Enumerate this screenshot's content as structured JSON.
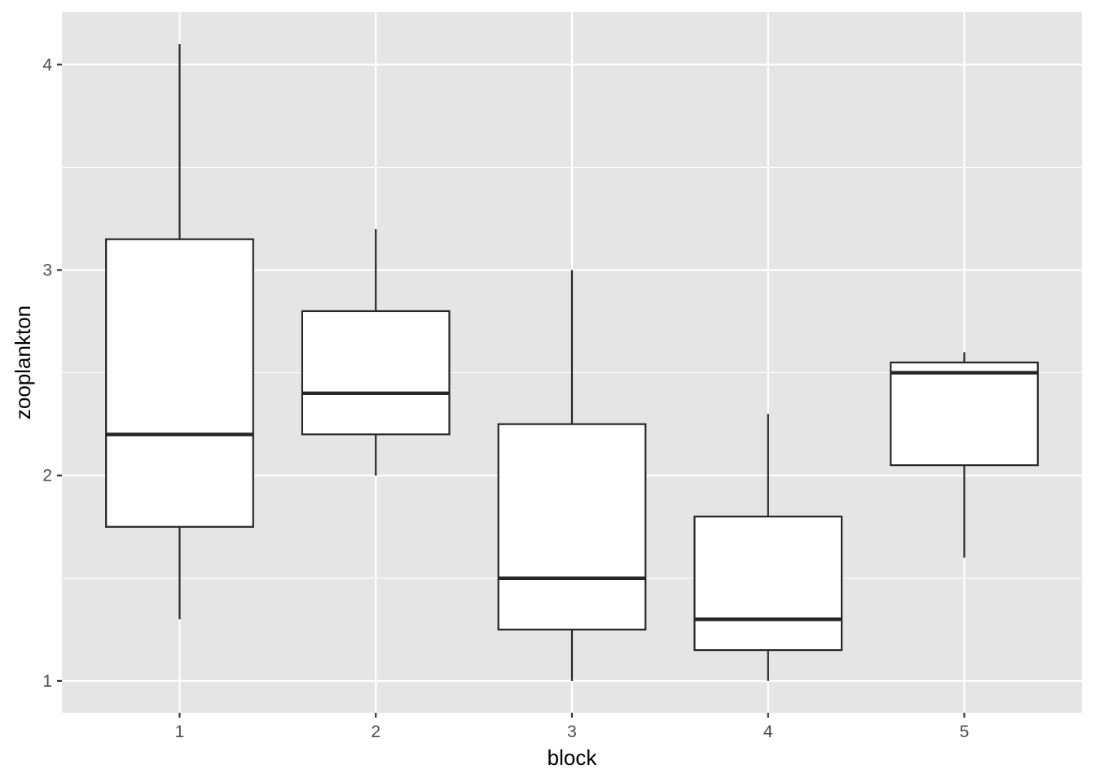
{
  "chart_data": {
    "type": "boxplot",
    "title": "",
    "xlabel": "block",
    "ylabel": "zooplankton",
    "categories": [
      "1",
      "2",
      "3",
      "4",
      "5"
    ],
    "boxes": [
      {
        "category": "1",
        "whisker_low": 1.3,
        "q1": 1.75,
        "median": 2.2,
        "q3": 3.15,
        "whisker_high": 4.1
      },
      {
        "category": "2",
        "whisker_low": 2.0,
        "q1": 2.2,
        "median": 2.4,
        "q3": 2.8,
        "whisker_high": 3.2
      },
      {
        "category": "3",
        "whisker_low": 1.0,
        "q1": 1.25,
        "median": 1.5,
        "q3": 2.25,
        "whisker_high": 3.0
      },
      {
        "category": "4",
        "whisker_low": 1.0,
        "q1": 1.15,
        "median": 1.3,
        "q3": 1.8,
        "whisker_high": 2.3
      },
      {
        "category": "5",
        "whisker_low": 1.6,
        "q1": 2.05,
        "median": 2.5,
        "q3": 2.55,
        "whisker_high": 2.6
      }
    ],
    "y_ticks": [
      "1",
      "2",
      "3",
      "4"
    ],
    "ylim": [
      0.845,
      4.255
    ],
    "grid": true,
    "colors": {
      "panel_background": "#e5e5e5",
      "grid_line": "#ffffff",
      "box_fill": "#ffffff",
      "box_stroke": "#262626",
      "tick_text": "#4d4d4d",
      "title_text": "#000000"
    }
  }
}
